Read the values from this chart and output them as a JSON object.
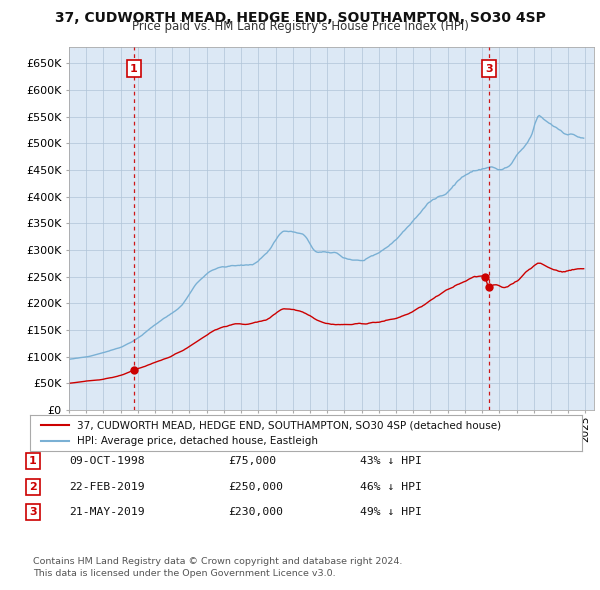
{
  "title": "37, CUDWORTH MEAD, HEDGE END, SOUTHAMPTON, SO30 4SP",
  "subtitle": "Price paid vs. HM Land Registry's House Price Index (HPI)",
  "property_label": "37, CUDWORTH MEAD, HEDGE END, SOUTHAMPTON, SO30 4SP (detached house)",
  "hpi_label": "HPI: Average price, detached house, Eastleigh",
  "property_color": "#cc0000",
  "hpi_color": "#7ab0d4",
  "vline_color": "#cc0000",
  "transactions": [
    {
      "num": 1,
      "date": "09-OCT-1998",
      "year": 1998.77,
      "price": 75000,
      "pct": "43% ↓ HPI"
    },
    {
      "num": 2,
      "date": "22-FEB-2019",
      "year": 2019.14,
      "price": 250000,
      "pct": "46% ↓ HPI"
    },
    {
      "num": 3,
      "date": "21-MAY-2019",
      "year": 2019.38,
      "price": 230000,
      "pct": "49% ↓ HPI"
    }
  ],
  "footer1": "Contains HM Land Registry data © Crown copyright and database right 2024.",
  "footer2": "This data is licensed under the Open Government Licence v3.0.",
  "ylim": [
    0,
    680000
  ],
  "yticks": [
    0,
    50000,
    100000,
    150000,
    200000,
    250000,
    300000,
    350000,
    400000,
    450000,
    500000,
    550000,
    600000,
    650000
  ],
  "background_color": "#dce8f5",
  "plot_bg": "#ffffff",
  "grid_color": "#b0c4d8"
}
